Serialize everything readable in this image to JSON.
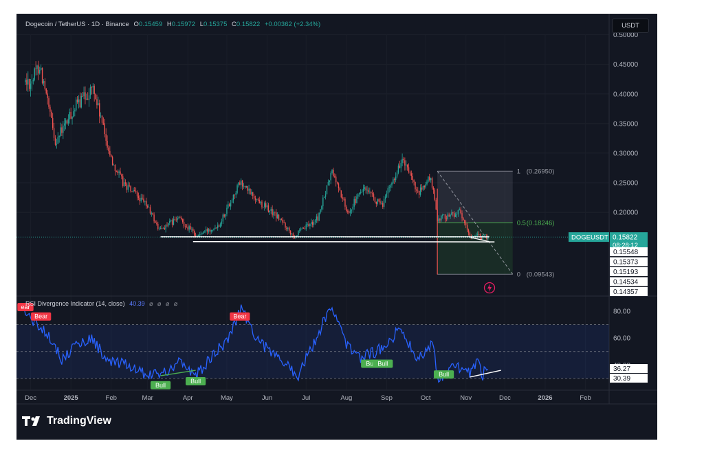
{
  "header": {
    "symbol": "Dogecoin / TetherUS · 1D · Binance",
    "open_label": "O",
    "open": "0.15459",
    "high_label": "H",
    "high": "0.15972",
    "low_label": "L",
    "low": "0.15375",
    "close_label": "C",
    "close": "0.15822",
    "change": "+0.00362 (+2.34%)"
  },
  "toolbar": {
    "currency_button": "USDT"
  },
  "brand": {
    "name": "TradingView"
  },
  "colors": {
    "bg": "#131722",
    "up": "#26a69a",
    "down": "#ef5350",
    "rsi": "#2962ff",
    "bull": "#4caf50",
    "bear": "#f23645"
  },
  "chart_data": [
    {
      "type": "candlestick",
      "pair": "DOGEUSDT",
      "y_range": [
        0.13,
        0.51
      ],
      "y_ticks": [
        "0.50000",
        "0.45000",
        "0.40000",
        "0.35000",
        "0.30000",
        "0.25000",
        "0.20000"
      ],
      "x_ticks": [
        "Dec",
        "2025",
        "Feb",
        "Mar",
        "Apr",
        "May",
        "Jun",
        "Jul",
        "Aug",
        "Sep",
        "Oct",
        "Nov",
        "Dec",
        "2026",
        "Feb"
      ],
      "price_path": [
        [
          "2024-12-01",
          0.42
        ],
        [
          "2024-12-08",
          0.45
        ],
        [
          "2024-12-20",
          0.32
        ],
        [
          "2025-01-05",
          0.38
        ],
        [
          "2025-01-18",
          0.41
        ],
        [
          "2025-02-01",
          0.29
        ],
        [
          "2025-02-10",
          0.25
        ],
        [
          "2025-03-01",
          0.21
        ],
        [
          "2025-03-10",
          0.17
        ],
        [
          "2025-03-25",
          0.19
        ],
        [
          "2025-04-08",
          0.16
        ],
        [
          "2025-04-25",
          0.18
        ],
        [
          "2025-05-11",
          0.25
        ],
        [
          "2025-05-25",
          0.22
        ],
        [
          "2025-06-10",
          0.19
        ],
        [
          "2025-06-22",
          0.16
        ],
        [
          "2025-07-10",
          0.19
        ],
        [
          "2025-07-21",
          0.27
        ],
        [
          "2025-08-02",
          0.2
        ],
        [
          "2025-08-14",
          0.24
        ],
        [
          "2025-08-28",
          0.21
        ],
        [
          "2025-09-13",
          0.29
        ],
        [
          "2025-09-25",
          0.23
        ],
        [
          "2025-10-05",
          0.26
        ],
        [
          "2025-10-10",
          0.19
        ],
        [
          "2025-10-27",
          0.2
        ],
        [
          "2025-11-04",
          0.16
        ],
        [
          "2025-11-18",
          0.158
        ]
      ],
      "support_lines": [
        {
          "from": [
            "2025-03-11",
            0.1585
          ],
          "to": [
            "2025-11-19",
            0.1585
          ]
        },
        {
          "from": [
            "2025-04-05",
            0.1505
          ],
          "to": [
            "2025-11-23",
            0.15
          ]
        }
      ],
      "fibonacci": {
        "levels": [
          {
            "ratio": "1",
            "value": "(0.26950)"
          },
          {
            "ratio": "0.5",
            "value": "(0.18246)"
          },
          {
            "ratio": "0",
            "value": "(0.09543)"
          }
        ]
      },
      "price_labels": {
        "current_symbol": "DOGEUSDT",
        "current": "0.15822",
        "countdown": "08:28:12",
        "levels": [
          "0.15548",
          "0.15373",
          "0.15193",
          "0.14534",
          "0.14357"
        ]
      }
    },
    {
      "type": "line",
      "title": "RSI Divergence Indicator (14, close)",
      "value": "40.39",
      "settings": "⌀ ⌀ ⌀ ⌀",
      "y_range": [
        22,
        92
      ],
      "y_ticks": [
        "80.00",
        "60.00",
        "40.00"
      ],
      "band": [
        30,
        70
      ],
      "current_labels": [
        "36.27",
        "30.39"
      ],
      "series": [
        {
          "values": [
            [
              "2024-11-26",
              80
            ],
            [
              "2024-12-06",
              70
            ],
            [
              "2024-12-15",
              63
            ],
            [
              "2024-12-25",
              44
            ],
            [
              "2025-01-05",
              55
            ],
            [
              "2025-01-17",
              60
            ],
            [
              "2025-01-30",
              42
            ],
            [
              "2025-02-12",
              40
            ],
            [
              "2025-03-01",
              33
            ],
            [
              "2025-03-15",
              34
            ],
            [
              "2025-03-25",
              44
            ],
            [
              "2025-04-07",
              31
            ],
            [
              "2025-04-20",
              47
            ],
            [
              "2025-05-01",
              58
            ],
            [
              "2025-05-12",
              83
            ],
            [
              "2025-05-24",
              60
            ],
            [
              "2025-06-05",
              48
            ],
            [
              "2025-06-17",
              40
            ],
            [
              "2025-06-24",
              31
            ],
            [
              "2025-07-08",
              58
            ],
            [
              "2025-07-20",
              85
            ],
            [
              "2025-08-01",
              55
            ],
            [
              "2025-08-12",
              46
            ],
            [
              "2025-08-25",
              50
            ],
            [
              "2025-09-12",
              67
            ],
            [
              "2025-09-25",
              44
            ],
            [
              "2025-10-06",
              57
            ],
            [
              "2025-10-11",
              30
            ],
            [
              "2025-10-22",
              40
            ],
            [
              "2025-11-03",
              34
            ],
            [
              "2025-11-10",
              42
            ],
            [
              "2025-11-14",
              33
            ],
            [
              "2025-11-18",
              40
            ]
          ]
        }
      ],
      "divergences": [
        {
          "from": [
            "2025-03-11",
            32
          ],
          "to": [
            "2025-04-07",
            36
          ]
        },
        {
          "from": [
            "2025-11-04",
            31
          ],
          "to": [
            "2025-11-28",
            36
          ]
        }
      ],
      "signals": [
        {
          "type": "bear",
          "label": "ear",
          "at": [
            "2024-11-27",
            79
          ]
        },
        {
          "type": "bear",
          "label": "Bear",
          "at": [
            "2024-12-09",
            72
          ]
        },
        {
          "type": "bear",
          "label": "Bear",
          "at": [
            "2025-05-11",
            72
          ]
        },
        {
          "type": "bull",
          "label": "Bull",
          "at": [
            "2025-03-11",
            29
          ]
        },
        {
          "type": "bull",
          "label": "Bull",
          "at": [
            "2025-04-07",
            32
          ]
        },
        {
          "type": "bull",
          "label": "Bull",
          "at": [
            "2025-08-20",
            45
          ]
        },
        {
          "type": "bull",
          "label": "Bull",
          "at": [
            "2025-08-29",
            45
          ]
        },
        {
          "type": "bull",
          "label": "Bull",
          "at": [
            "2025-10-15",
            37
          ]
        }
      ]
    }
  ]
}
